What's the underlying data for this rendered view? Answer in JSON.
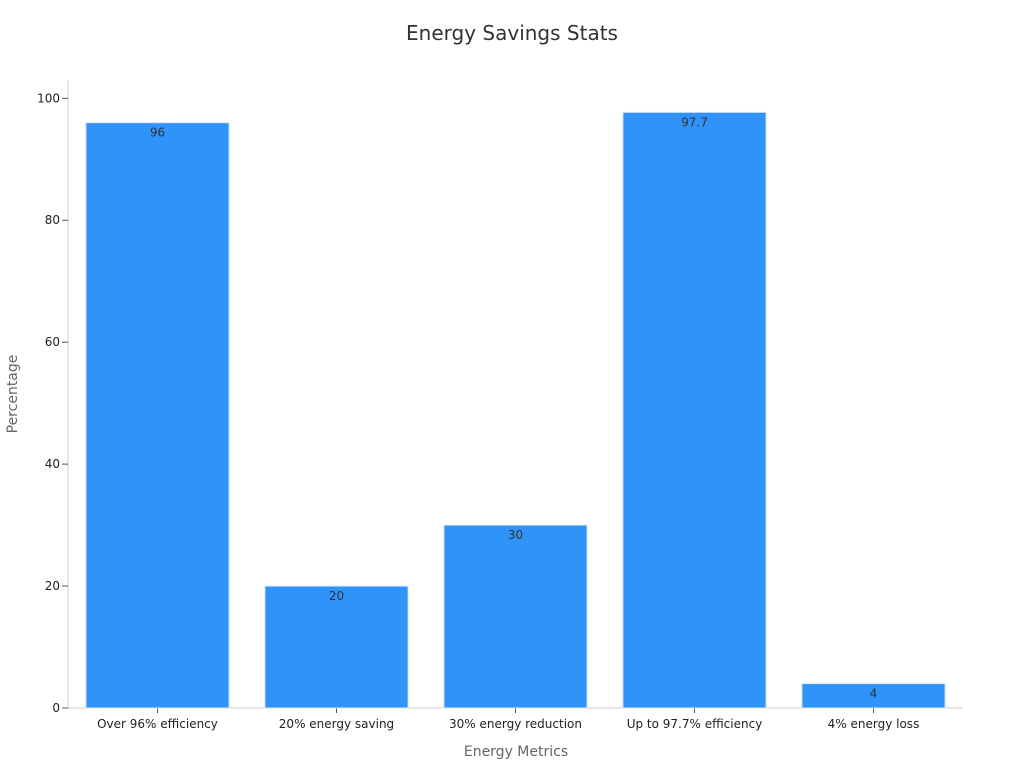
{
  "chart_data": {
    "type": "bar",
    "title": "Energy Savings Stats",
    "xlabel": "Energy Metrics",
    "ylabel": "Percentage",
    "categories": [
      "Over 96% efficiency",
      "20% energy saving",
      "30% energy reduction",
      "Up to 97.7% efficiency",
      "4% energy loss"
    ],
    "values": [
      96,
      20,
      30,
      97.7,
      4
    ],
    "data_labels": [
      "96",
      "20",
      "30",
      "97.7",
      "4"
    ],
    "ylim": [
      0,
      103
    ],
    "yticks": [
      0,
      20,
      40,
      60,
      80,
      100
    ],
    "grid": false,
    "legend": "none",
    "bar_color": "#2f93f9",
    "bar_edge_color": "#dde9f5"
  }
}
